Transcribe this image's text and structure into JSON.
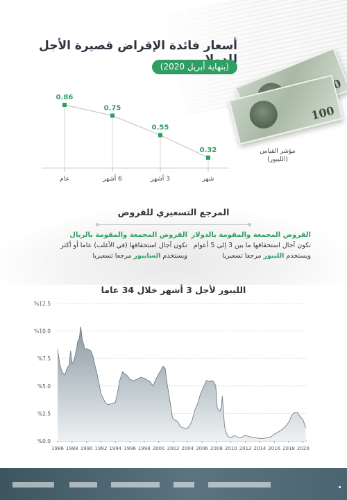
{
  "header": {
    "title": "أسعار فائدة الإقراض قصيرة الأجل للدولار",
    "subtitle": "(بنهاية أبريل 2020)"
  },
  "gauge": {
    "label_line1": "مؤشر القياس",
    "label_line2": "(الليبور)"
  },
  "pricing": {
    "title": "المرجع التسعيري للقروض",
    "left": {
      "heading": "القروض المجمعة والمقومة بالريال",
      "line1": "تكون آجال استحقاقها (في الأغلب) عاما أو أكثر",
      "line2_prefix": "ويستخدم ",
      "line2_highlight": "السايبور",
      "line2_suffix": " مرجعا تسعيريا"
    },
    "right": {
      "heading": "القروض المجمعة والمقومة بالدولار",
      "line1": "تكون آجال استحقاقها ما بين 3 إلى 5 أعوام",
      "line2_prefix": "ويستخدم ",
      "line2_highlight": "الليبور",
      "line2_suffix": " مرجعا تسعيريا"
    }
  },
  "colors": {
    "accent_green": "#2e9e63",
    "area_fill_top": "#8a9aa3",
    "area_fill_bottom": "#eef1f3",
    "area_line": "#6f7e87",
    "band": "#4a6470"
  },
  "chart_data": [
    {
      "type": "line",
      "categories": [
        "عام",
        "6 أشهر",
        "3 أشهر",
        "شهر"
      ],
      "values": [
        0.86,
        0.75,
        0.55,
        0.32
      ],
      "value_labels": [
        "0.86",
        "0.75",
        "0.55",
        "0.32"
      ],
      "title": "",
      "xlabel": "",
      "ylabel": ""
    },
    {
      "type": "area",
      "title": "الليبور لأجل 3 أشهر خلال 34 عاما",
      "x_ticks": [
        "1986",
        "1988",
        "1990",
        "1992",
        "1994",
        "1996",
        "1998",
        "2000",
        "2002",
        "2004",
        "2006",
        "2008",
        "2010",
        "2012",
        "2014",
        "2016",
        "2018",
        "2020"
      ],
      "y_ticks": [
        "%0.0",
        "%2.5",
        "%5.0",
        "%7.5",
        "%10.0",
        "%12.5"
      ],
      "xlim": [
        1986,
        2020.5
      ],
      "ylim": [
        0,
        12.5
      ],
      "grid": true,
      "x": [
        1986.0,
        1986.3,
        1986.6,
        1987.0,
        1987.3,
        1987.6,
        1987.8,
        1988.0,
        1988.3,
        1988.6,
        1988.8,
        1989.0,
        1989.2,
        1989.4,
        1989.6,
        1989.8,
        1990.0,
        1990.3,
        1990.6,
        1990.9,
        1991.2,
        1991.5,
        1991.8,
        1992.0,
        1992.3,
        1992.6,
        1993.0,
        1993.5,
        1994.0,
        1994.3,
        1994.6,
        1995.0,
        1995.3,
        1995.7,
        1996.0,
        1996.5,
        1997.0,
        1997.5,
        1998.0,
        1998.5,
        1998.8,
        1999.2,
        1999.6,
        2000.0,
        2000.3,
        2000.6,
        2000.9,
        2001.1,
        2001.4,
        2001.7,
        2001.9,
        2002.2,
        2002.6,
        2003.0,
        2003.4,
        2003.8,
        2004.2,
        2004.6,
        2005.0,
        2005.4,
        2005.8,
        2006.2,
        2006.6,
        2007.0,
        2007.4,
        2007.7,
        2007.9,
        2008.1,
        2008.3,
        2008.5,
        2008.7,
        2008.8,
        2008.95,
        2009.1,
        2009.3,
        2009.6,
        2010.0,
        2010.5,
        2011.0,
        2011.5,
        2011.9,
        2012.3,
        2012.8,
        2013.5,
        2014.2,
        2015.0,
        2015.6,
        2016.0,
        2016.5,
        2017.0,
        2017.5,
        2018.0,
        2018.4,
        2018.8,
        2019.2,
        2019.6,
        2020.0,
        2020.2,
        2020.35
      ],
      "values": [
        8.3,
        7.0,
        6.3,
        6.0,
        6.6,
        6.9,
        8.2,
        7.0,
        7.4,
        8.3,
        9.1,
        9.3,
        10.4,
        9.3,
        8.8,
        8.3,
        8.4,
        8.3,
        8.2,
        7.7,
        6.8,
        6.0,
        5.0,
        4.3,
        3.9,
        3.5,
        3.3,
        3.4,
        3.5,
        4.4,
        5.5,
        6.3,
        6.1,
        5.9,
        5.6,
        5.5,
        5.6,
        5.8,
        5.7,
        5.5,
        5.4,
        5.0,
        5.6,
        6.1,
        6.4,
        6.8,
        6.6,
        5.5,
        4.3,
        3.0,
        2.1,
        1.9,
        1.8,
        1.3,
        1.2,
        1.1,
        1.3,
        1.8,
        2.8,
        3.4,
        4.3,
        4.9,
        5.5,
        5.4,
        5.5,
        5.3,
        5.0,
        3.0,
        2.8,
        2.7,
        3.2,
        4.1,
        2.9,
        1.4,
        0.8,
        0.4,
        0.3,
        0.5,
        0.3,
        0.3,
        0.5,
        0.45,
        0.35,
        0.27,
        0.23,
        0.28,
        0.4,
        0.62,
        0.8,
        1.0,
        1.3,
        1.7,
        2.3,
        2.6,
        2.6,
        2.2,
        1.9,
        1.5,
        1.2
      ]
    }
  ]
}
